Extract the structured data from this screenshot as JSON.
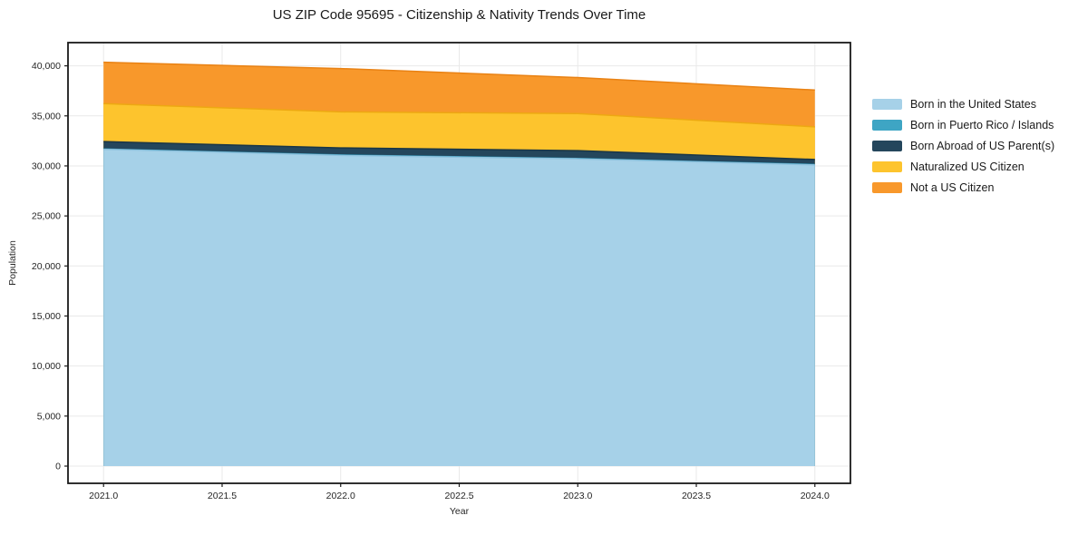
{
  "chart_data": {
    "type": "area",
    "stacked": true,
    "title": "US ZIP Code 95695 - Citizenship & Nativity Trends Over Time",
    "xlabel": "Year",
    "ylabel": "Population",
    "x": [
      2021,
      2022,
      2023,
      2024
    ],
    "series": [
      {
        "name": "Born in the United States",
        "values": [
          31650,
          31050,
          30700,
          30100
        ],
        "color": "#a6d1e8",
        "edge": "#8fc2de"
      },
      {
        "name": "Born in Puerto Rico / Islands",
        "values": [
          40,
          40,
          40,
          40
        ],
        "color": "#3ea5c4",
        "edge": "#2d93b3"
      },
      {
        "name": "Born Abroad of US Parent(s)",
        "values": [
          740,
          710,
          790,
          500
        ],
        "color": "#24465c",
        "edge": "#1a3646"
      },
      {
        "name": "Naturalized US Citizen",
        "values": [
          3790,
          3600,
          3700,
          3260
        ],
        "color": "#fdc42d",
        "edge": "#eda812"
      },
      {
        "name": "Not a US Citizen",
        "values": [
          4140,
          4330,
          3600,
          3680
        ],
        "color": "#f8982b",
        "edge": "#e98214"
      }
    ],
    "totals": [
      40360,
      39730,
      38830,
      37580
    ],
    "x_ticks": {
      "values": [
        2021.0,
        2021.5,
        2022.0,
        2022.5,
        2023.0,
        2023.5,
        2024.0
      ],
      "labels": [
        "2021.0",
        "2021.5",
        "2022.0",
        "2022.5",
        "2023.0",
        "2023.5",
        "2024.0"
      ]
    },
    "y_ticks": {
      "values": [
        0,
        5000,
        10000,
        15000,
        20000,
        25000,
        30000,
        35000,
        40000
      ],
      "labels": [
        "0",
        "5,000",
        "10,000",
        "15,000",
        "20,000",
        "25,000",
        "30,000",
        "35,000",
        "40,000"
      ]
    },
    "xlim": [
      2020.85,
      2024.15
    ],
    "ylim": [
      -1720,
      42320
    ],
    "grid": true,
    "grid_color": "#e9e9e9",
    "spine_color": "#1a1a1a",
    "tick_text_color": "#262626",
    "legend_position": "right"
  }
}
